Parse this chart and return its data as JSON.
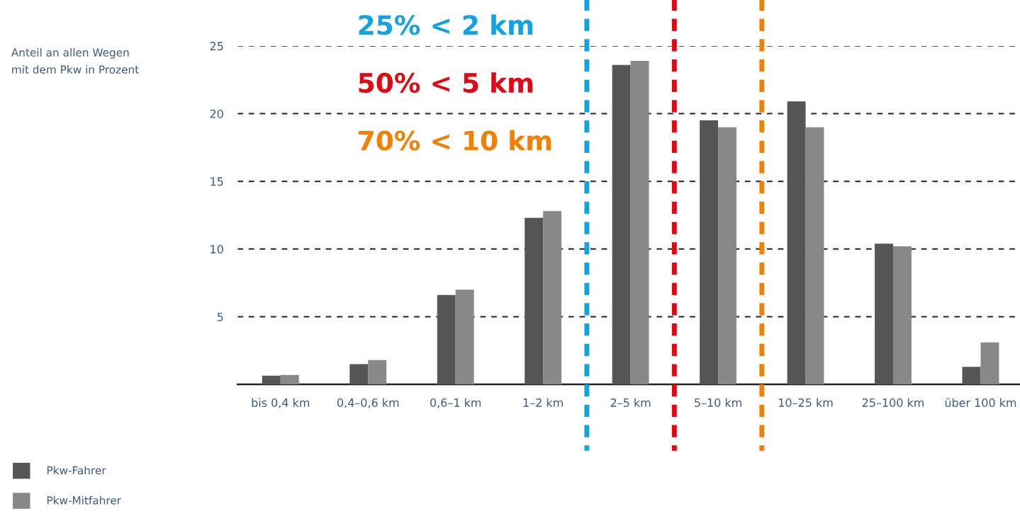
{
  "chart_data": {
    "type": "bar",
    "annotations": [
      "Anteil an allen Wegen\nmit dem Pkw in Prozent",
      "25% < 2 km",
      "50% < 5 km",
      "70% < 10 km"
    ],
    "categories": [
      "bis 0,4 km",
      "0,4–0,6 km",
      "0,6–1 km",
      "1–2 km",
      "2–5 km",
      "5–10 km",
      "10–25 km",
      "25–100 km",
      "über 100 km"
    ],
    "series": [
      {
        "name": "Pkw-Fahrer",
        "color": "#555555",
        "values": [
          0.65,
          1.5,
          6.6,
          12.3,
          23.6,
          19.5,
          20.9,
          10.4,
          1.3
        ]
      },
      {
        "name": "Pkw-Mitfahrer",
        "color": "#888888",
        "values": [
          0.7,
          1.8,
          7.0,
          12.8,
          23.9,
          19.0,
          19.0,
          10.2,
          3.1
        ]
      }
    ],
    "ylim": [
      0,
      25
    ],
    "yticks": [
      5,
      10,
      15,
      20,
      25
    ],
    "grid": "y",
    "legend": "bottom left"
  }
}
